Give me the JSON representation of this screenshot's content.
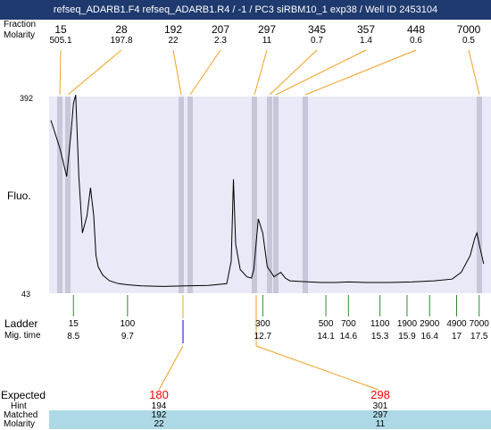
{
  "title": "refseq_ADARB1.F4  refseq_ADARB1.R4 / -1 / PC3 siRBM10_1 exp38 / Well ID 2453104",
  "row_labels": {
    "fraction": "Fraction",
    "molarity_top": "Molarity",
    "fluo": "Fluo.",
    "ladder": "Ladder",
    "mig_time": "Mig. time",
    "expected": "Expected",
    "hint": "Hint",
    "matched": "Matched",
    "molarity_bottom": "Molarity"
  },
  "colors": {
    "plot_bg": "#e9e9f7",
    "peak_band": "#c7c7d9",
    "orange": "#f0a020",
    "ladder_green": "#2e8b2e",
    "marker_blue": "#0000cc",
    "highlight": "#add8e6",
    "expected_red": "#ff0000"
  },
  "top_peaks": [
    {
      "size": "15",
      "molarity": "505.1"
    },
    {
      "size": "28",
      "molarity": "197.8"
    },
    {
      "size": "192",
      "molarity": "22"
    },
    {
      "size": "207",
      "molarity": "2.3"
    },
    {
      "size": "297",
      "molarity": "11"
    },
    {
      "size": "345",
      "molarity": "0.7"
    },
    {
      "size": "357",
      "molarity": "1.4"
    },
    {
      "size": "448",
      "molarity": "0.6"
    },
    {
      "size": "7000",
      "molarity": "0.5"
    }
  ],
  "ladder": [
    {
      "size": "15",
      "time": "8.5"
    },
    {
      "size": "100",
      "time": "9.7"
    },
    {
      "size": "300",
      "time": "12.7"
    },
    {
      "size": "500",
      "time": "14.1"
    },
    {
      "size": "700",
      "time": "14.6"
    },
    {
      "size": "1100",
      "time": "15.3"
    },
    {
      "size": "1900",
      "time": "15.9"
    },
    {
      "size": "2900",
      "time": "16.4"
    },
    {
      "size": "4900",
      "time": "17"
    },
    {
      "size": "7000",
      "time": "17.5"
    }
  ],
  "expected": [
    {
      "expected": "180",
      "hint": "194",
      "matched": "192",
      "molarity": "22"
    },
    {
      "expected": "298",
      "hint": "301",
      "matched": "297",
      "molarity": "11"
    }
  ],
  "chart_data": {
    "type": "line",
    "title": "",
    "xlabel": "Mig. time",
    "ylabel": "Fluo.",
    "ylim": [
      43,
      392
    ],
    "y_ticks": [
      "392",
      "43"
    ],
    "series": [
      {
        "x": [
          8.0,
          8.2,
          8.35,
          8.45,
          8.5,
          8.55,
          8.62,
          8.7,
          8.8,
          8.88,
          8.95,
          9.0,
          9.05,
          9.15,
          9.3,
          9.5,
          9.7,
          10.0,
          10.5,
          11.0,
          11.5,
          11.9,
          12.0,
          12.05,
          12.1,
          12.2,
          12.35,
          12.45,
          12.5,
          12.6,
          12.7,
          12.8,
          12.95,
          13.0,
          13.1,
          13.2,
          13.3,
          13.5,
          14.0,
          14.3,
          14.6,
          15.0,
          15.5,
          16.0,
          16.5,
          16.9,
          17.1,
          17.3,
          17.4,
          17.45,
          17.5,
          17.6
        ],
        "y": [
          350,
          300,
          250,
          330,
          380,
          395,
          250,
          150,
          180,
          230,
          180,
          110,
          90,
          75,
          65,
          60,
          58,
          56,
          55,
          56,
          57,
          60,
          100,
          245,
          130,
          85,
          72,
          70,
          85,
          175,
          150,
          90,
          72,
          75,
          80,
          70,
          65,
          64,
          62,
          62,
          63,
          62,
          62,
          63,
          65,
          68,
          80,
          110,
          140,
          150,
          130,
          95
        ]
      }
    ]
  }
}
